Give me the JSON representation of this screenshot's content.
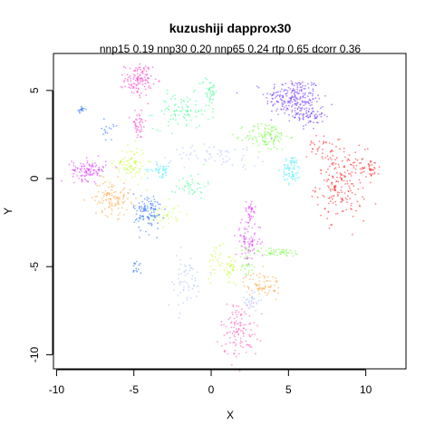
{
  "chart_data": {
    "type": "scatter",
    "title": "kuzushiji dapprox30",
    "subtitle": "nnp15 0.19 nnp30 0.20 nnp65 0.24 rtp 0.65 dcorr 0.36",
    "xlabel": "X",
    "ylabel": "Y",
    "xlim": [
      -10.2,
      12.6
    ],
    "ylim": [
      -10.8,
      7.1
    ],
    "xticks": [
      -10,
      -5,
      0,
      5,
      10
    ],
    "yticks": [
      -10,
      -5,
      0,
      5
    ],
    "grid": false,
    "legend": "none",
    "series": [
      {
        "color": "#6020ff",
        "clusters": [
          {
            "cx": 5.3,
            "cy": 4.6,
            "sx": 0.9,
            "sy": 0.55,
            "n": 220
          },
          {
            "cx": 6.3,
            "cy": 3.6,
            "sx": 0.5,
            "sy": 0.4,
            "n": 80
          }
        ]
      },
      {
        "color": "#ff1010",
        "clusters": [
          {
            "cx": 8.4,
            "cy": -0.3,
            "sx": 0.8,
            "sy": 1.0,
            "n": 200
          },
          {
            "cx": 10.3,
            "cy": 0.6,
            "sx": 0.3,
            "sy": 0.3,
            "n": 40
          },
          {
            "cx": 7.0,
            "cy": 1.8,
            "sx": 0.4,
            "sy": 0.3,
            "n": 30
          }
        ]
      },
      {
        "color": "#ff20c0",
        "clusters": [
          {
            "cx": -4.7,
            "cy": 5.6,
            "sx": 0.45,
            "sy": 0.45,
            "n": 120
          },
          {
            "cx": -4.7,
            "cy": 3.0,
            "sx": 0.25,
            "sy": 0.4,
            "n": 40
          }
        ]
      },
      {
        "color": "#20ff80",
        "clusters": [
          {
            "cx": -1.9,
            "cy": 3.8,
            "sx": 0.9,
            "sy": 0.5,
            "n": 90
          },
          {
            "cx": -0.1,
            "cy": 5.0,
            "sx": 0.25,
            "sy": 0.4,
            "n": 40
          },
          {
            "cx": -1.3,
            "cy": -0.4,
            "sx": 0.5,
            "sy": 0.35,
            "n": 40
          }
        ]
      },
      {
        "color": "#60ff20",
        "clusters": [
          {
            "cx": 3.6,
            "cy": 2.4,
            "sx": 0.7,
            "sy": 0.4,
            "n": 110
          },
          {
            "cx": 4.3,
            "cy": -4.2,
            "sx": 0.9,
            "sy": 0.12,
            "n": 50
          },
          {
            "cx": 2.3,
            "cy": -4.6,
            "sx": 0.3,
            "sy": 0.5,
            "n": 30
          }
        ]
      },
      {
        "color": "#20f0ff",
        "clusters": [
          {
            "cx": 5.2,
            "cy": 0.5,
            "sx": 0.3,
            "sy": 0.4,
            "n": 70
          },
          {
            "cx": -3.3,
            "cy": 0.5,
            "sx": 0.4,
            "sy": 0.2,
            "n": 40
          }
        ]
      },
      {
        "color": "#e020ff",
        "clusters": [
          {
            "cx": -7.9,
            "cy": 0.5,
            "sx": 0.55,
            "sy": 0.3,
            "n": 110
          },
          {
            "cx": 2.4,
            "cy": -3.6,
            "sx": 0.4,
            "sy": 0.6,
            "n": 80
          },
          {
            "cx": 2.5,
            "cy": -1.8,
            "sx": 0.2,
            "sy": 0.3,
            "n": 30
          }
        ]
      },
      {
        "color": "#c0ff20",
        "clusters": [
          {
            "cx": -5.2,
            "cy": 0.8,
            "sx": 0.5,
            "sy": 0.5,
            "n": 90
          },
          {
            "cx": -3.0,
            "cy": -2.0,
            "sx": 0.5,
            "sy": 0.35,
            "n": 40
          },
          {
            "cx": 1.3,
            "cy": -5.2,
            "sx": 0.2,
            "sy": 0.5,
            "n": 40
          },
          {
            "cx": 0.3,
            "cy": -4.6,
            "sx": 0.3,
            "sy": 0.5,
            "n": 30
          }
        ]
      },
      {
        "color": "#ff9a20",
        "clusters": [
          {
            "cx": -6.4,
            "cy": -1.1,
            "sx": 0.6,
            "sy": 0.5,
            "n": 110
          },
          {
            "cx": 3.3,
            "cy": -6.0,
            "sx": 0.6,
            "sy": 0.35,
            "n": 70
          }
        ]
      },
      {
        "color": "#1060ff",
        "clusters": [
          {
            "cx": -4.1,
            "cy": -1.9,
            "sx": 0.45,
            "sy": 0.55,
            "n": 110
          },
          {
            "cx": -8.4,
            "cy": 3.9,
            "sx": 0.12,
            "sy": 0.1,
            "n": 15
          },
          {
            "cx": -6.7,
            "cy": 2.7,
            "sx": 0.2,
            "sy": 0.25,
            "n": 15
          },
          {
            "cx": -4.8,
            "cy": -5.0,
            "sx": 0.15,
            "sy": 0.3,
            "n": 15
          }
        ]
      },
      {
        "color": "#ff40b0",
        "clusters": [
          {
            "cx": 1.8,
            "cy": -8.6,
            "sx": 0.6,
            "sy": 0.8,
            "n": 120
          }
        ]
      },
      {
        "color": "#a0b8ff",
        "clusters": [
          {
            "cx": -1.7,
            "cy": -5.8,
            "sx": 0.6,
            "sy": 0.8,
            "n": 60
          },
          {
            "cx": 0.5,
            "cy": 1.3,
            "sx": 1.5,
            "sy": 0.3,
            "n": 60
          },
          {
            "cx": 2.6,
            "cy": -6.9,
            "sx": 0.3,
            "sy": 0.3,
            "n": 30
          }
        ]
      }
    ]
  }
}
